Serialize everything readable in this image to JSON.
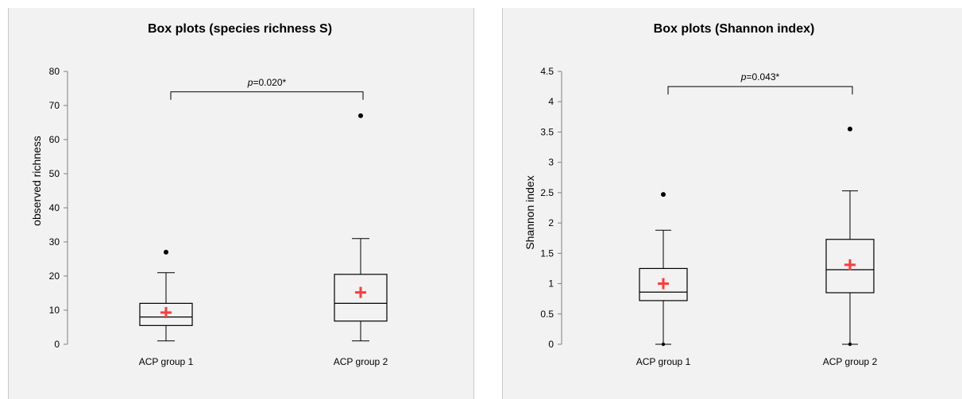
{
  "chart_data": [
    {
      "type": "box",
      "title": "Box plots (species richness S)",
      "xlabel": "",
      "ylabel": "observed richness",
      "ylim": [
        0,
        80
      ],
      "yticks": [
        "0",
        "10",
        "20",
        "30",
        "40",
        "50",
        "60",
        "70",
        "80"
      ],
      "categories": [
        "ACP group 1",
        "ACP group 2"
      ],
      "boxes": [
        {
          "min": 1,
          "q1": 5.5,
          "median": 8,
          "q3": 12,
          "max": 21,
          "mean": 9.3,
          "outliers": [
            27
          ]
        },
        {
          "min": 1,
          "q1": 6.8,
          "median": 12,
          "q3": 20.5,
          "max": 31,
          "mean": 15.2,
          "outliers": [
            67
          ]
        }
      ],
      "significance": {
        "p_italic": "p",
        "p_rest": "=0.020*",
        "y": 74
      }
    },
    {
      "type": "box",
      "title": "Box plots (Shannon index)",
      "xlabel": "",
      "ylabel": "Shannon index",
      "ylim": [
        0,
        4.5
      ],
      "yticks": [
        "0",
        "0.5",
        "1",
        "1.5",
        "2",
        "2.5",
        "3",
        "3.5",
        "4",
        "4.5"
      ],
      "categories": [
        "ACP group 1",
        "ACP group 2"
      ],
      "boxes": [
        {
          "min": 0,
          "q1": 0.72,
          "median": 0.86,
          "q3": 1.25,
          "max": 1.88,
          "mean": 1.0,
          "outliers": [
            2.47,
            0
          ]
        },
        {
          "min": 0,
          "q1": 0.85,
          "median": 1.23,
          "q3": 1.73,
          "max": 2.53,
          "mean": 1.31,
          "outliers": [
            3.55,
            0
          ]
        }
      ],
      "significance": {
        "p_italic": "p",
        "p_rest": "=0.043*",
        "y": 4.25
      }
    }
  ],
  "colors": {
    "mean_marker": "#ff3b3b",
    "panel_bg": "#f2f2f2",
    "box_stroke": "#000000"
  }
}
